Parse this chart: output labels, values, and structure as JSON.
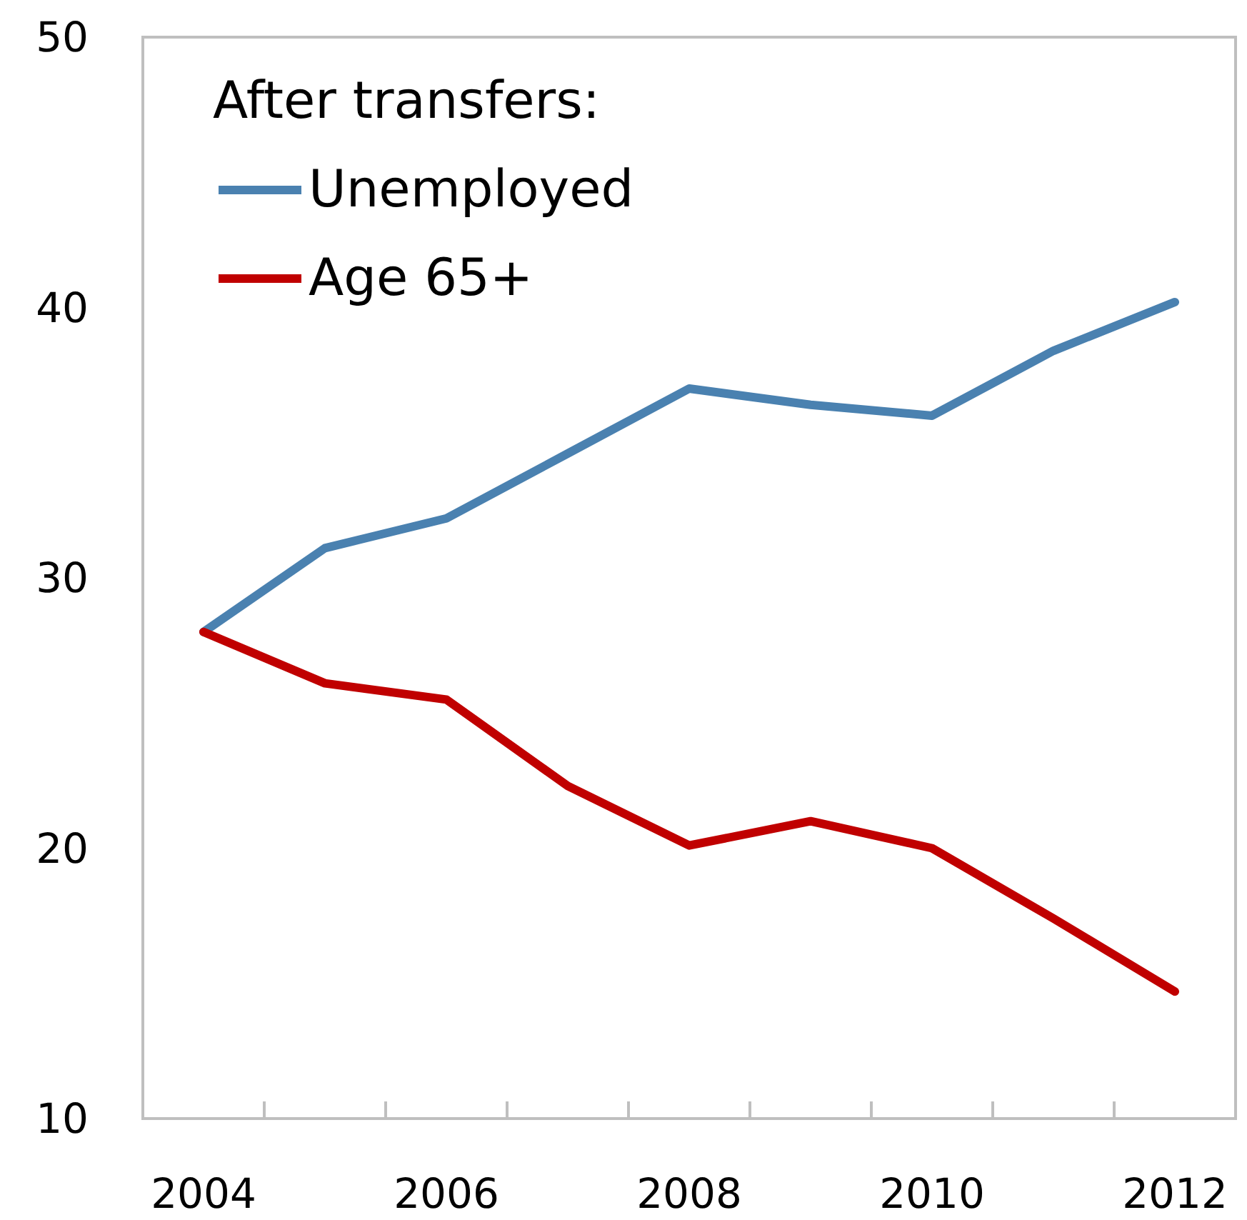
{
  "chart_data": {
    "type": "line",
    "legend_title": "After transfers:",
    "categories": [
      "2004",
      null,
      "2006",
      null,
      "2008",
      null,
      "2010",
      null,
      "2012"
    ],
    "series": [
      {
        "name": "Unemployed",
        "color": "#4a81b0",
        "values": [
          28.0,
          31.1,
          32.2,
          34.6,
          37.0,
          36.4,
          36.0,
          38.4,
          40.2
        ]
      },
      {
        "name": "Age 65+",
        "color": "#c00000",
        "values": [
          28.0,
          26.1,
          25.5,
          22.3,
          20.1,
          21.0,
          20.0,
          17.4,
          14.7
        ]
      }
    ],
    "ylim": [
      10,
      50
    ],
    "yticks": [
      10,
      20,
      30,
      40,
      50
    ],
    "grid": false,
    "legend": "top left",
    "marker": "none",
    "line_style": "solid"
  }
}
